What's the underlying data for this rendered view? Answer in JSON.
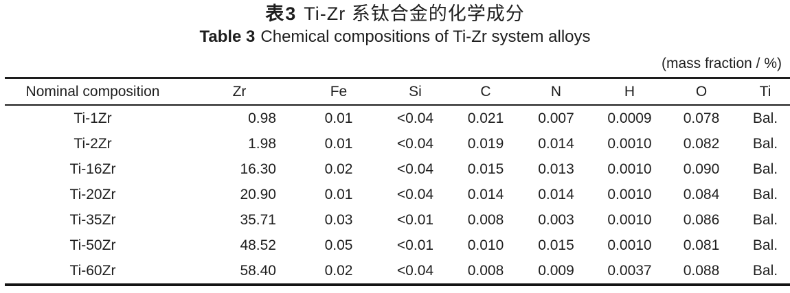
{
  "page": {
    "background_color": "#ffffff",
    "text_color": "#1e1e1e",
    "rule_color": "#1d1d1d"
  },
  "title": {
    "zh_label": "表3",
    "zh_text": "Ti-Zr 系钛合金的化学成分",
    "en_label": "Table 3",
    "en_text": "Chemical compositions of Ti-Zr system alloys",
    "unit_note": "(mass fraction / %)"
  },
  "table": {
    "headers": [
      "Nominal composition",
      "Zr",
      "Fe",
      "Si",
      "C",
      "N",
      "H",
      "O",
      "Ti"
    ],
    "column_keys": [
      "nominal-composition",
      "zr",
      "fe",
      "si",
      "c",
      "n",
      "h",
      "o",
      "ti"
    ],
    "rows": [
      [
        "Ti-1Zr",
        "0.98",
        "0.01",
        "<0.04",
        "0.021",
        "0.007",
        "0.0009",
        "0.078",
        "Bal."
      ],
      [
        "Ti-2Zr",
        "1.98",
        "0.01",
        "<0.04",
        "0.019",
        "0.014",
        "0.0010",
        "0.082",
        "Bal."
      ],
      [
        "Ti-16Zr",
        "16.30",
        "0.02",
        "<0.04",
        "0.015",
        "0.013",
        "0.0010",
        "0.090",
        "Bal."
      ],
      [
        "Ti-20Zr",
        "20.90",
        "0.01",
        "<0.04",
        "0.014",
        "0.014",
        "0.0010",
        "0.084",
        "Bal."
      ],
      [
        "Ti-35Zr",
        "35.71",
        "0.03",
        "<0.01",
        "0.008",
        "0.003",
        "0.0010",
        "0.086",
        "Bal."
      ],
      [
        "Ti-50Zr",
        "48.52",
        "0.05",
        "<0.01",
        "0.010",
        "0.015",
        "0.0010",
        "0.081",
        "Bal."
      ],
      [
        "Ti-60Zr",
        "58.40",
        "0.02",
        "<0.04",
        "0.008",
        "0.009",
        "0.0037",
        "0.088",
        "Bal."
      ]
    ]
  }
}
